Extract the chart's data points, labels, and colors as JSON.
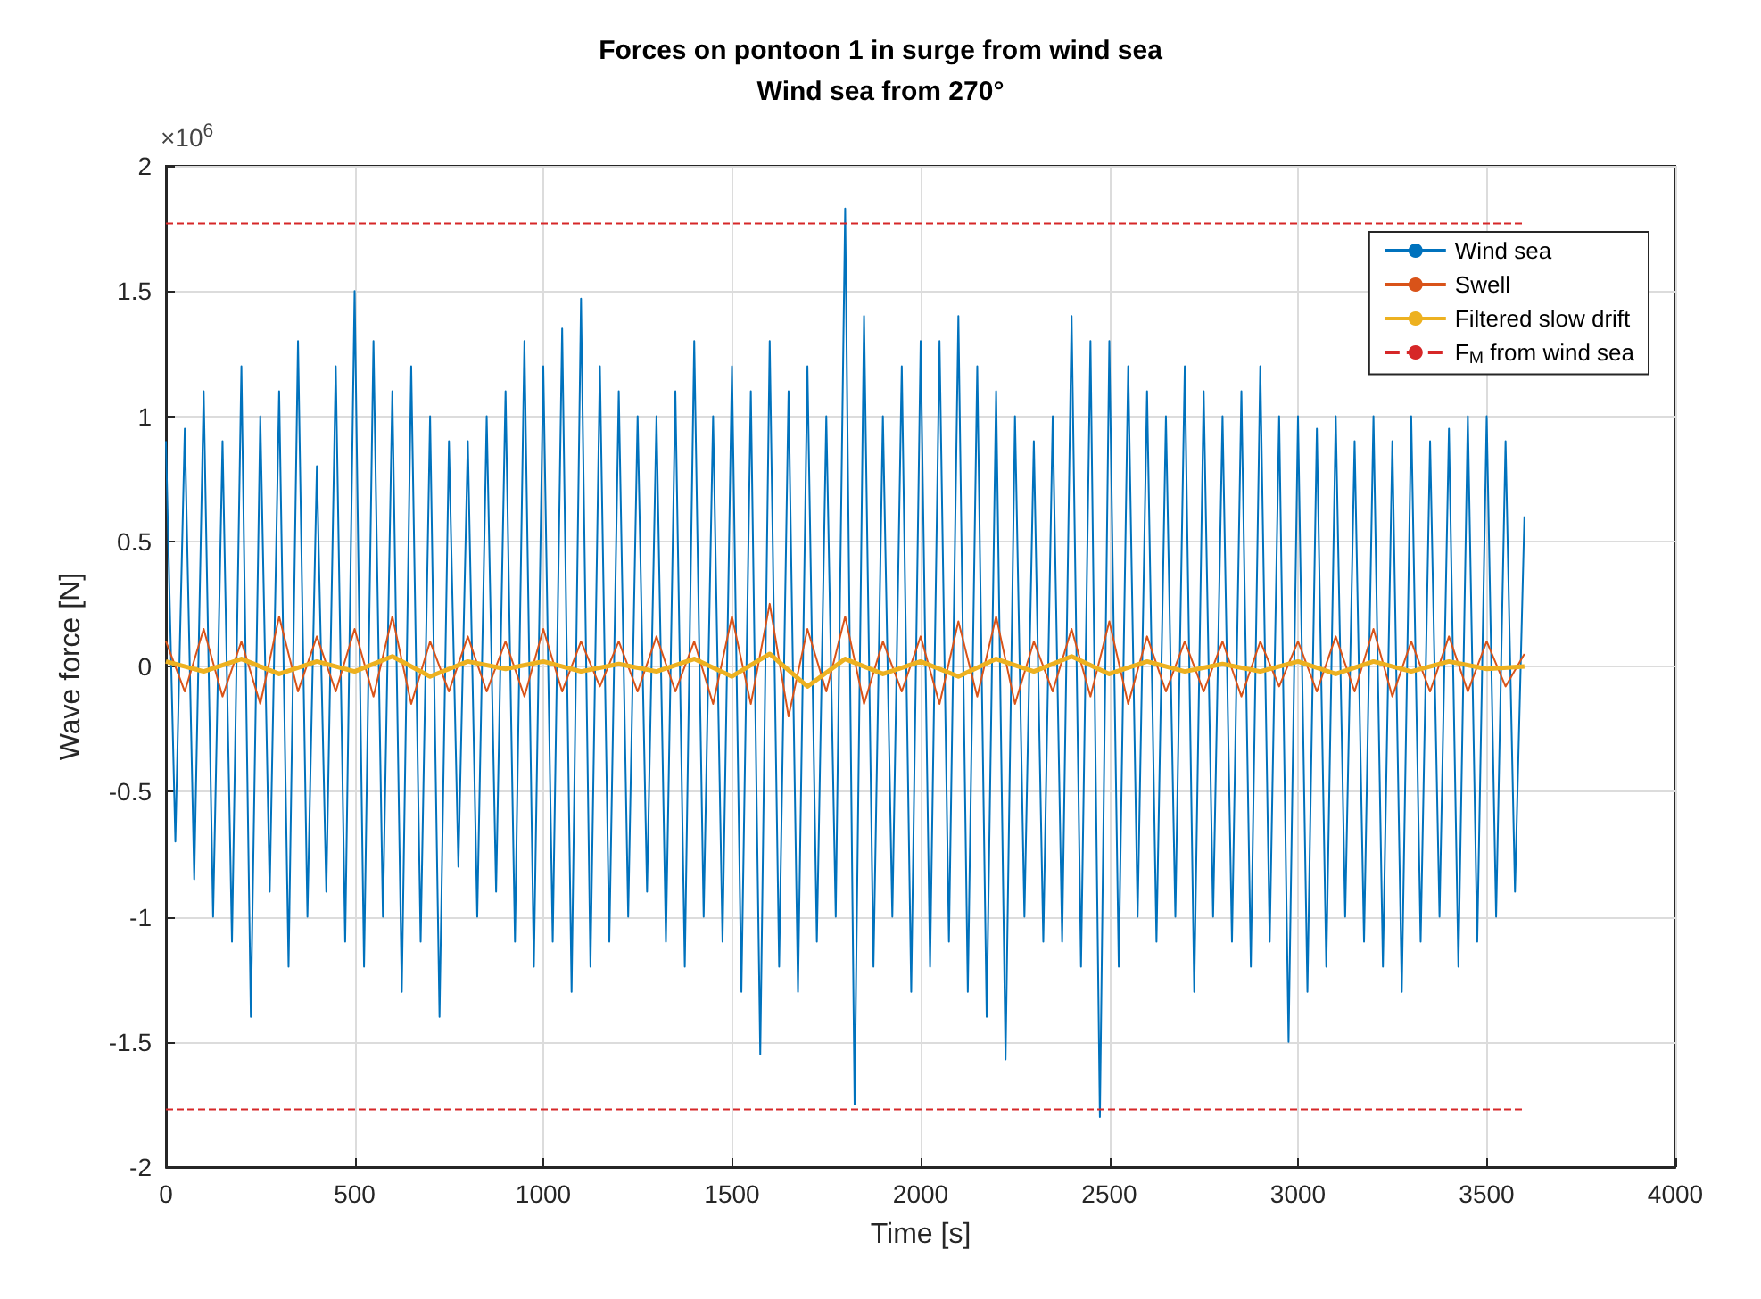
{
  "chart_data": {
    "type": "line",
    "title": "Forces on pontoon 1 in surge from wind sea",
    "subtitle": "Wind sea from 270°",
    "xlabel": "Time [s]",
    "ylabel": "Wave force [N]",
    "annotations": [
      "×10$^{6}$"
    ],
    "xlim": [
      0,
      4000
    ],
    "xticks": [
      0,
      500,
      1000,
      1500,
      2000,
      2500,
      3000,
      3500,
      4000
    ],
    "ylim": [
      -2,
      2
    ],
    "yticks": [
      -2,
      -1.5,
      -1,
      -0.5,
      0,
      0.5,
      1,
      1.5,
      2
    ],
    "grid": true,
    "legend": "top right",
    "marker": "none",
    "series": [
      {
        "name": "Wind sea",
        "color": "#0072bd",
        "x": [
          0,
          25,
          50,
          75,
          100,
          125,
          150,
          175,
          200,
          225,
          250,
          275,
          300,
          325,
          350,
          375,
          400,
          425,
          450,
          475,
          500,
          525,
          550,
          575,
          600,
          625,
          650,
          675,
          700,
          725,
          750,
          775,
          800,
          825,
          850,
          875,
          900,
          925,
          950,
          975,
          1000,
          1025,
          1050,
          1075,
          1100,
          1125,
          1150,
          1175,
          1200,
          1225,
          1250,
          1275,
          1300,
          1325,
          1350,
          1375,
          1400,
          1425,
          1450,
          1475,
          1500,
          1525,
          1550,
          1575,
          1600,
          1625,
          1650,
          1675,
          1700,
          1725,
          1750,
          1775,
          1800,
          1825,
          1850,
          1875,
          1900,
          1925,
          1950,
          1975,
          2000,
          2025,
          2050,
          2075,
          2100,
          2125,
          2150,
          2175,
          2200,
          2225,
          2250,
          2275,
          2300,
          2325,
          2350,
          2375,
          2400,
          2425,
          2450,
          2475,
          2500,
          2525,
          2550,
          2575,
          2600,
          2625,
          2650,
          2675,
          2700,
          2725,
          2750,
          2775,
          2800,
          2825,
          2850,
          2875,
          2900,
          2925,
          2950,
          2975,
          3000,
          3025,
          3050,
          3075,
          3100,
          3125,
          3150,
          3175,
          3200,
          3225,
          3250,
          3275,
          3300,
          3325,
          3350,
          3375,
          3400,
          3425,
          3450,
          3475,
          3500,
          3525,
          3550,
          3575,
          3600
        ],
        "values": [
          0.9,
          -0.7,
          0.95,
          -0.85,
          1.1,
          -1.0,
          0.9,
          -1.1,
          1.2,
          -1.4,
          1.0,
          -0.9,
          1.1,
          -1.2,
          1.3,
          -1.0,
          0.8,
          -0.9,
          1.2,
          -1.1,
          1.5,
          -1.2,
          1.3,
          -1.0,
          1.1,
          -1.3,
          1.2,
          -1.1,
          1.0,
          -1.4,
          0.9,
          -0.8,
          0.9,
          -1.0,
          1.0,
          -0.9,
          1.1,
          -1.1,
          1.3,
          -1.2,
          1.2,
          -1.1,
          1.35,
          -1.3,
          1.47,
          -1.2,
          1.2,
          -1.1,
          1.1,
          -1.0,
          1.0,
          -0.9,
          1.0,
          -1.1,
          1.1,
          -1.2,
          1.3,
          -1.0,
          1.0,
          -1.1,
          1.2,
          -1.3,
          1.1,
          -1.55,
          1.3,
          -1.2,
          1.1,
          -1.3,
          1.2,
          -1.1,
          1.0,
          -1.0,
          1.83,
          -1.75,
          1.4,
          -1.2,
          1.0,
          -1.0,
          1.2,
          -1.3,
          1.3,
          -1.2,
          1.3,
          -1.1,
          1.4,
          -1.3,
          1.2,
          -1.4,
          1.1,
          -1.57,
          1.0,
          -1.0,
          0.9,
          -1.1,
          1.0,
          -1.1,
          1.4,
          -1.2,
          1.3,
          -1.8,
          1.3,
          -1.2,
          1.2,
          -1.0,
          1.1,
          -1.1,
          1.0,
          -1.0,
          1.2,
          -1.3,
          1.1,
          -1.0,
          1.0,
          -1.1,
          1.1,
          -1.2,
          1.2,
          -1.1,
          1.0,
          -1.5,
          1.0,
          -1.3,
          0.95,
          -1.2,
          1.0,
          -1.0,
          0.9,
          -1.1,
          1.0,
          -1.2,
          0.9,
          -1.3,
          1.0,
          -1.1,
          0.9,
          -1.0,
          0.95,
          -1.2,
          1.0,
          -1.1,
          1.0,
          -1.0,
          0.9,
          -0.9,
          0.6
        ]
      },
      {
        "name": "Swell",
        "color": "#d95319",
        "x": [
          0,
          50,
          100,
          150,
          200,
          250,
          300,
          350,
          400,
          450,
          500,
          550,
          600,
          650,
          700,
          750,
          800,
          850,
          900,
          950,
          1000,
          1050,
          1100,
          1150,
          1200,
          1250,
          1300,
          1350,
          1400,
          1450,
          1500,
          1550,
          1600,
          1650,
          1700,
          1750,
          1800,
          1850,
          1900,
          1950,
          2000,
          2050,
          2100,
          2150,
          2200,
          2250,
          2300,
          2350,
          2400,
          2450,
          2500,
          2550,
          2600,
          2650,
          2700,
          2750,
          2800,
          2850,
          2900,
          2950,
          3000,
          3050,
          3100,
          3150,
          3200,
          3250,
          3300,
          3350,
          3400,
          3450,
          3500,
          3550,
          3600
        ],
        "values": [
          0.1,
          -0.1,
          0.15,
          -0.12,
          0.1,
          -0.15,
          0.2,
          -0.1,
          0.12,
          -0.1,
          0.15,
          -0.12,
          0.2,
          -0.15,
          0.1,
          -0.1,
          0.12,
          -0.1,
          0.1,
          -0.12,
          0.15,
          -0.1,
          0.1,
          -0.08,
          0.1,
          -0.1,
          0.12,
          -0.1,
          0.1,
          -0.15,
          0.2,
          -0.15,
          0.25,
          -0.2,
          0.15,
          -0.1,
          0.2,
          -0.15,
          0.1,
          -0.1,
          0.12,
          -0.15,
          0.18,
          -0.12,
          0.2,
          -0.15,
          0.1,
          -0.1,
          0.15,
          -0.12,
          0.18,
          -0.15,
          0.12,
          -0.1,
          0.1,
          -0.1,
          0.1,
          -0.12,
          0.1,
          -0.08,
          0.1,
          -0.1,
          0.12,
          -0.1,
          0.15,
          -0.12,
          0.1,
          -0.1,
          0.12,
          -0.1,
          0.1,
          -0.08,
          0.05
        ]
      },
      {
        "name": "Filtered slow drift",
        "color": "#edb120",
        "x": [
          0,
          100,
          200,
          300,
          400,
          500,
          600,
          700,
          800,
          900,
          1000,
          1100,
          1200,
          1300,
          1400,
          1500,
          1600,
          1700,
          1800,
          1900,
          2000,
          2100,
          2200,
          2300,
          2400,
          2500,
          2600,
          2700,
          2800,
          2900,
          3000,
          3100,
          3200,
          3300,
          3400,
          3500,
          3600
        ],
        "values": [
          0.02,
          -0.02,
          0.03,
          -0.03,
          0.02,
          -0.02,
          0.04,
          -0.04,
          0.02,
          -0.01,
          0.02,
          -0.02,
          0.01,
          -0.02,
          0.03,
          -0.04,
          0.05,
          -0.08,
          0.03,
          -0.03,
          0.02,
          -0.04,
          0.03,
          -0.02,
          0.04,
          -0.03,
          0.02,
          -0.02,
          0.01,
          -0.02,
          0.02,
          -0.03,
          0.02,
          -0.02,
          0.02,
          -0.01,
          0.0
        ]
      },
      {
        "name": "F$_{M}$ from wind sea",
        "color": "#d62728",
        "line_style": "dashed",
        "x": [
          0,
          3600
        ],
        "values": [
          1.77,
          1.77
        ]
      },
      {
        "color": "#d62728",
        "line_style": "dashed",
        "x": [
          0,
          3600
        ],
        "values": [
          -1.77,
          -1.77
        ]
      }
    ]
  }
}
